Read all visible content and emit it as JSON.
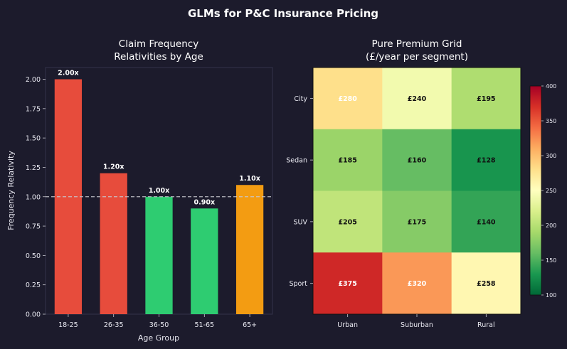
{
  "figure": {
    "suptitle": "GLMs for P&C Insurance Pricing"
  },
  "chart_data": [
    {
      "type": "bar",
      "title_lines": [
        "Claim Frequency",
        "Relativities by Age"
      ],
      "xlabel": "Age Group",
      "ylabel": "Frequency Relativity",
      "categories": [
        "18-25",
        "26-35",
        "36-50",
        "51-65",
        "65+"
      ],
      "values": [
        2.0,
        1.2,
        1.0,
        0.9,
        1.1
      ],
      "data_labels": [
        "2.00x",
        "1.20x",
        "1.00x",
        "0.90x",
        "1.10x"
      ],
      "bar_colors": [
        "#e74c3c",
        "#e74c3c",
        "#2ecc71",
        "#2ecc71",
        "#f39c12"
      ],
      "ylim": [
        0,
        2.1
      ],
      "yticks": [
        0,
        0.25,
        0.5,
        0.75,
        1.0,
        1.25,
        1.5,
        1.75,
        2.0
      ],
      "ytick_labels": [
        "0.00",
        "0.25",
        "0.50",
        "0.75",
        "1.00",
        "1.25",
        "1.50",
        "1.75",
        "2.00"
      ],
      "reference_line": 1.0,
      "grid": false
    },
    {
      "type": "heatmap",
      "title_lines": [
        "Pure Premium Grid",
        "(£/year per segment)"
      ],
      "columns": [
        "Urban",
        "Suburban",
        "Rural"
      ],
      "rows": [
        "City",
        "Sedan",
        "SUV",
        "Sport"
      ],
      "values": [
        [
          280,
          240,
          195
        ],
        [
          185,
          160,
          128
        ],
        [
          205,
          175,
          140
        ],
        [
          375,
          320,
          258
        ]
      ],
      "cell_labels": [
        [
          "£280",
          "£240",
          "£195"
        ],
        [
          "£185",
          "£160",
          "£128"
        ],
        [
          "£205",
          "£175",
          "£140"
        ],
        [
          "£375",
          "£320",
          "£258"
        ]
      ],
      "colormap": "RdYlGn_r",
      "vmin": 100,
      "vmax": 400,
      "colorbar_ticks": [
        100,
        150,
        200,
        250,
        300,
        350,
        400
      ],
      "colorbar_tick_labels": [
        "100",
        "150",
        "200",
        "250",
        "300",
        "350",
        "400"
      ]
    }
  ],
  "colors": {
    "background": "#1c1b2c",
    "text": "#e8e8f0",
    "reference_line": "#c8c8d0"
  }
}
